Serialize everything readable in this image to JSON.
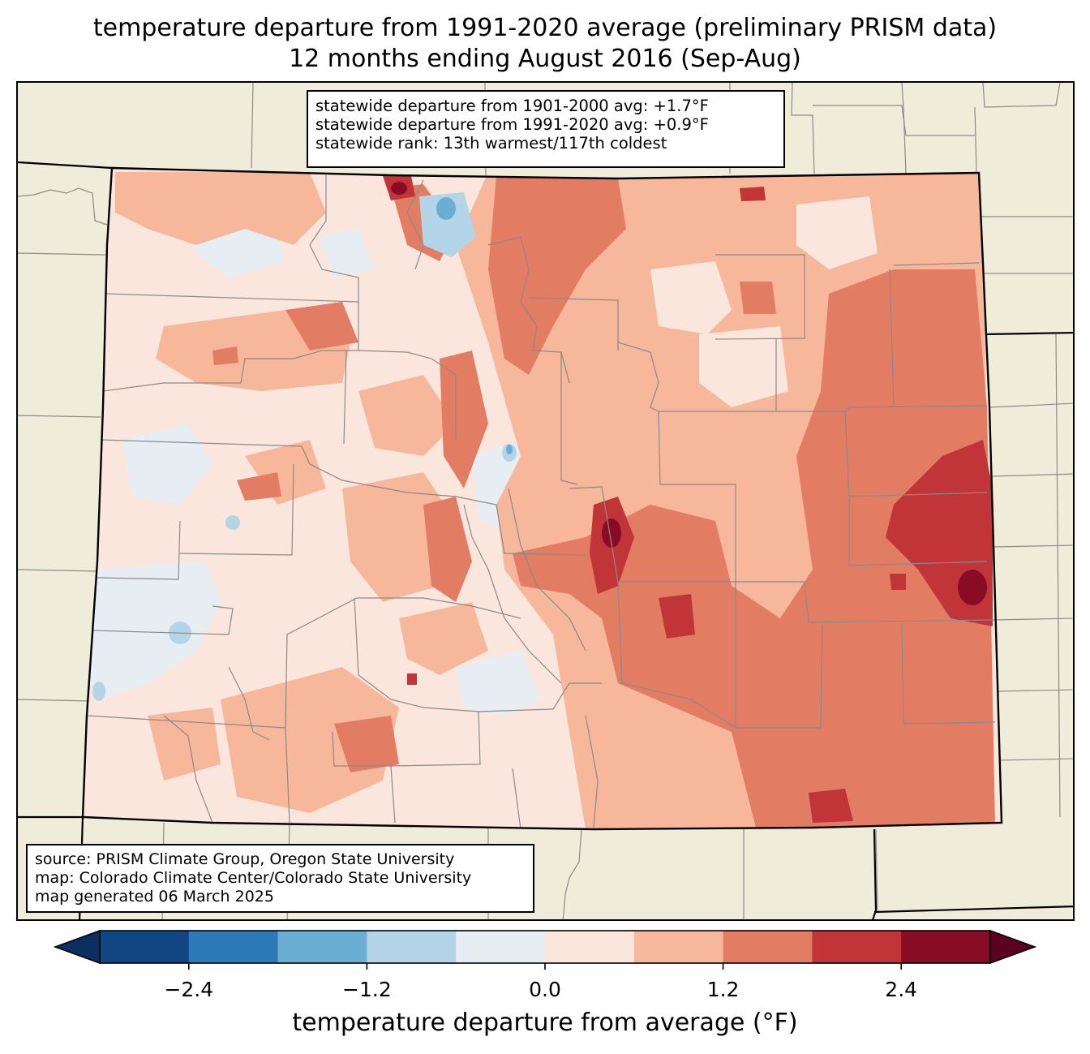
{
  "title": {
    "line1": "temperature departure from 1991-2020 average (preliminary PRISM data)",
    "line2": "12 months ending August 2016 (Sep-Aug)"
  },
  "stats": {
    "line1": "statewide departure from 1901-2000 avg: +1.7°F",
    "line2": "statewide departure from 1991-2020 avg: +0.9°F",
    "line3": "statewide rank: 13th warmest/117th coldest"
  },
  "credits": {
    "line1": "source: PRISM Climate Group, Oregon State University",
    "line2": "map: Colorado Climate Center/Colorado State University",
    "line3": "map generated 06 March 2025"
  },
  "colorbar": {
    "label": "temperature departure from average (°F)",
    "ticks": [
      "−2.4",
      "−1.2",
      "0.0",
      "1.2",
      "2.4"
    ],
    "tick_values": [
      -2.4,
      -1.2,
      0.0,
      1.2,
      2.4
    ],
    "range": [
      -3.0,
      3.0
    ],
    "step": 0.6,
    "extend": "both",
    "colors": {
      "under": "#0a2f63",
      "bins": [
        "#124683",
        "#2e7ab8",
        "#6aaed3",
        "#b3d5e7",
        "#e6eef4",
        "#fae6dd",
        "#f7b79a",
        "#e27c63",
        "#c13539",
        "#880c26"
      ],
      "over": "#5c0020"
    }
  },
  "map_colors": {
    "land": "#efedd9",
    "county_line": "#8a8a8a",
    "state_line": "#000000"
  }
}
